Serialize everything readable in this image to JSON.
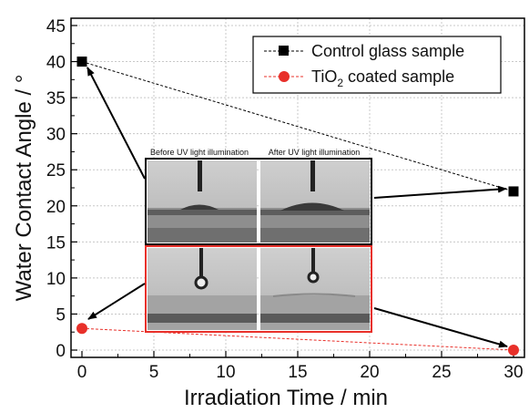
{
  "chart_data": {
    "type": "scatter",
    "xlabel": "Irradiation Time / min",
    "ylabel": "Water Contact Angle / °",
    "xlim": [
      0,
      30
    ],
    "ylim": [
      0,
      45
    ],
    "xticks": [
      "0",
      "5",
      "10",
      "15",
      "20",
      "25",
      "30"
    ],
    "yticks": [
      "0",
      "5",
      "10",
      "15",
      "20",
      "25",
      "30",
      "35",
      "40",
      "45"
    ],
    "grid": true,
    "legend_position": "top-right",
    "series": [
      {
        "name": "Control glass sample",
        "marker": "square",
        "line": "dashed",
        "color": "#000000",
        "x": [
          0,
          30
        ],
        "y": [
          40,
          22
        ]
      },
      {
        "name": "TiO2 coated sample",
        "marker": "circle",
        "line": "dashed",
        "color": "#e8302a",
        "x": [
          0,
          30
        ],
        "y": [
          3,
          0
        ]
      }
    ],
    "legend": {
      "control_label": "Control glass sample",
      "tio2_prefix": "TiO",
      "tio2_sub": "2",
      "tio2_suffix": " coated sample"
    },
    "inset": {
      "caption_before": "Before UV light illumination",
      "caption_after": "After UV light illumination",
      "control_border_color": "#000000",
      "tio2_border_color": "#e8302a"
    }
  }
}
